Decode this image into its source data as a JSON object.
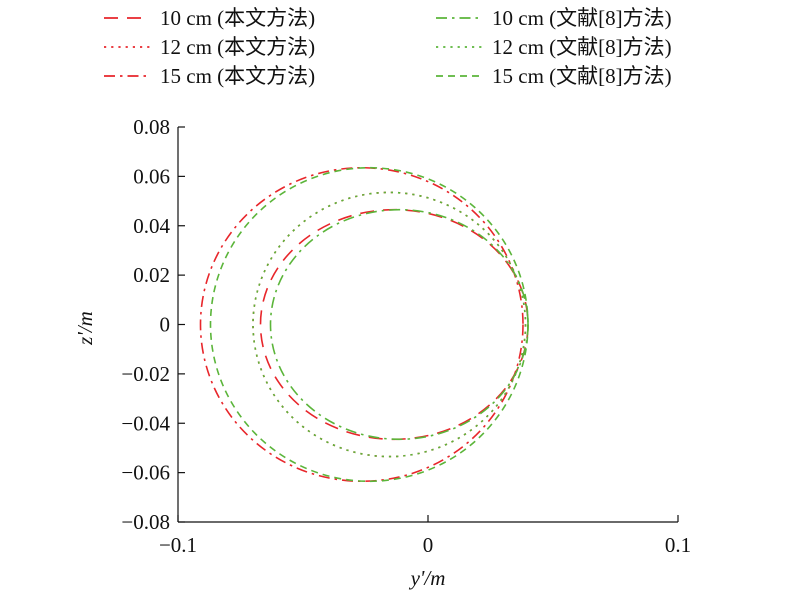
{
  "chart_data": {
    "type": "line",
    "xlabel": "y'/m",
    "ylabel": "z'/m",
    "xlim": [
      -0.1,
      0.1
    ],
    "ylim": [
      -0.08,
      0.08
    ],
    "x_ticks": [
      -0.1,
      0,
      0.1
    ],
    "x_tick_labels": [
      "−0.1",
      "0",
      "0.1"
    ],
    "y_ticks": [
      0.08,
      0.06,
      0.04,
      0.02,
      0,
      -0.02,
      -0.04,
      -0.06,
      -0.08
    ],
    "y_tick_labels": [
      "0.08",
      "0.06",
      "0.04",
      "0.02",
      "0",
      "−0.02",
      "−0.04",
      "−0.06",
      "−0.08"
    ],
    "grid": false,
    "legend_position": "top",
    "series": [
      {
        "name": "10 cm (本文方法)",
        "color": "#e8262b",
        "dash": "longdash",
        "shape": "circle",
        "center": [
          -0.0135,
          0.0
        ],
        "radii": [
          0.0535,
          0.0465
        ]
      },
      {
        "name": "12 cm (本文方法)",
        "color": "#e8262b",
        "dash": "dot",
        "shape": "circle",
        "center": [
          -0.0155,
          0.0
        ],
        "radii": [
          0.0545,
          0.0535
        ]
      },
      {
        "name": "15 cm (本文方法)",
        "color": "#e8262b",
        "dash": "dashdot",
        "shape": "circle",
        "center": [
          -0.0265,
          0.0
        ],
        "radii": [
          0.0645,
          0.0635
        ]
      },
      {
        "name": "10 cm (文献[8]方法)",
        "color": "#5bb53a",
        "dash": "dashdot",
        "shape": "circle",
        "center": [
          -0.0115,
          0.0
        ],
        "radii": [
          0.0515,
          0.0465
        ]
      },
      {
        "name": "12 cm (文献[8]方法)",
        "color": "#5bb53a",
        "dash": "dot",
        "shape": "circle",
        "center": [
          -0.0155,
          0.0
        ],
        "radii": [
          0.0545,
          0.0535
        ]
      },
      {
        "name": "15 cm (文献[8]方法)",
        "color": "#5bb53a",
        "dash": "dash",
        "shape": "circle",
        "center": [
          -0.0235,
          0.0
        ],
        "radii": [
          0.0635,
          0.0635
        ]
      }
    ]
  }
}
